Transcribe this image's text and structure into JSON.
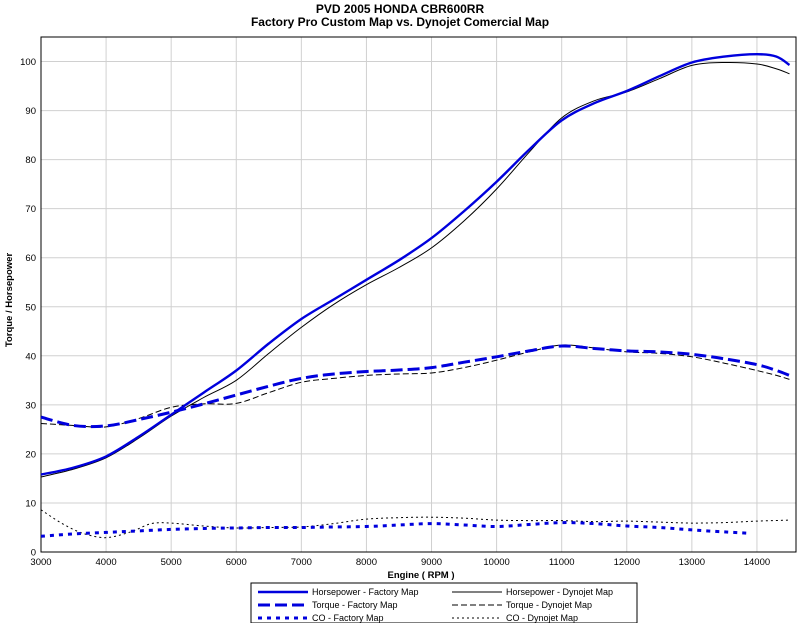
{
  "chart_data": {
    "type": "line",
    "title": "PVD 2005 HONDA CBR600RR",
    "subtitle": "Factory Pro Custom Map vs. Dynojet Comercial Map",
    "xlabel": "Engine ( RPM )",
    "ylabel": "Torque / Horsepower",
    "xlim": [
      3000,
      14600
    ],
    "ylim": [
      0,
      105
    ],
    "xticks": [
      3000,
      4000,
      5000,
      6000,
      7000,
      8000,
      9000,
      10000,
      11000,
      12000,
      13000,
      14000
    ],
    "yticks": [
      0,
      10,
      20,
      30,
      40,
      50,
      60,
      70,
      80,
      90,
      100
    ],
    "grid": true,
    "legend_position": "bottom",
    "series": [
      {
        "name": "Horsepower - Factory Map",
        "color": "#0000dd",
        "style": "solid-thick",
        "x": [
          3000,
          3500,
          4000,
          4500,
          5000,
          5500,
          6000,
          6500,
          7000,
          7500,
          8000,
          8500,
          9000,
          9500,
          10000,
          10500,
          11000,
          11500,
          12000,
          12500,
          13000,
          13500,
          14000,
          14300,
          14500
        ],
        "y": [
          15.8,
          17.2,
          19.5,
          23.5,
          28.0,
          32.5,
          37.0,
          42.5,
          47.5,
          51.5,
          55.5,
          59.5,
          64.0,
          69.5,
          75.5,
          82.0,
          88.0,
          91.5,
          94.0,
          97.0,
          99.8,
          101.0,
          101.5,
          101.0,
          99.3
        ]
      },
      {
        "name": "Horsepower - Dynojet Map",
        "color": "#000000",
        "style": "solid-thin",
        "x": [
          3000,
          3500,
          4000,
          4500,
          5000,
          5500,
          6000,
          6500,
          7000,
          7500,
          8000,
          8500,
          9000,
          9500,
          10000,
          10500,
          11000,
          11500,
          12000,
          12500,
          13000,
          13500,
          14000,
          14300,
          14500
        ],
        "y": [
          15.3,
          16.9,
          19.2,
          23.2,
          27.7,
          31.5,
          35.0,
          40.5,
          45.8,
          50.5,
          54.5,
          58.0,
          62.0,
          67.5,
          74.0,
          81.5,
          88.5,
          92.0,
          93.8,
          96.5,
          99.2,
          99.8,
          99.5,
          98.5,
          97.5
        ]
      },
      {
        "name": "Torque - Factory Map",
        "color": "#0000dd",
        "style": "dash-thick",
        "x": [
          3000,
          3500,
          4000,
          4500,
          5000,
          5500,
          6000,
          6500,
          7000,
          7500,
          8000,
          8500,
          9000,
          9500,
          10000,
          10500,
          11000,
          11500,
          12000,
          12500,
          13000,
          13500,
          14000,
          14300,
          14500
        ],
        "y": [
          27.5,
          25.8,
          25.7,
          27.0,
          28.5,
          30.2,
          32.0,
          33.8,
          35.4,
          36.3,
          36.8,
          37.1,
          37.6,
          38.7,
          39.8,
          41.0,
          42.0,
          41.5,
          41.0,
          40.8,
          40.3,
          39.4,
          38.2,
          37.0,
          36.0
        ]
      },
      {
        "name": "Torque - Dynojet Map",
        "color": "#000000",
        "style": "dash-thin",
        "x": [
          3000,
          3500,
          4000,
          4500,
          5000,
          5500,
          6000,
          6500,
          7000,
          7500,
          8000,
          8500,
          9000,
          9500,
          10000,
          10500,
          11000,
          11500,
          12000,
          12500,
          13000,
          13500,
          14000,
          14300,
          14500
        ],
        "y": [
          26.2,
          25.8,
          25.5,
          27.2,
          29.5,
          30.2,
          30.3,
          32.5,
          34.6,
          35.4,
          36.0,
          36.3,
          36.5,
          37.6,
          39.1,
          40.8,
          42.2,
          41.6,
          40.8,
          40.5,
          39.8,
          38.5,
          37.0,
          36.0,
          35.2
        ]
      },
      {
        "name": "CO - Factory Map",
        "color": "#0000dd",
        "style": "dot-thick",
        "x": [
          3000,
          3500,
          4000,
          4500,
          5000,
          5500,
          6000,
          6500,
          7000,
          7500,
          8000,
          8500,
          9000,
          9500,
          10000,
          10500,
          11000,
          11500,
          12000,
          12500,
          13000,
          13500,
          13900
        ],
        "y": [
          3.2,
          3.7,
          4.0,
          4.3,
          4.6,
          4.8,
          4.9,
          5.0,
          5.0,
          5.1,
          5.2,
          5.5,
          5.8,
          5.5,
          5.2,
          5.6,
          6.0,
          5.8,
          5.3,
          5.0,
          4.5,
          4.1,
          3.8
        ]
      },
      {
        "name": "CO - Dynojet Map",
        "color": "#000000",
        "style": "dot-thin",
        "x": [
          3000,
          3300,
          3600,
          3900,
          4100,
          4400,
          4700,
          5000,
          5500,
          6000,
          6500,
          7000,
          7500,
          8000,
          8500,
          9000,
          9500,
          10000,
          10500,
          11000,
          11500,
          12000,
          12500,
          13000,
          13500,
          14000,
          14500
        ],
        "y": [
          8.6,
          6.0,
          4.0,
          3.0,
          3.1,
          4.2,
          5.8,
          5.9,
          5.3,
          4.9,
          5.0,
          5.1,
          5.8,
          6.7,
          7.0,
          7.1,
          6.9,
          6.5,
          6.4,
          6.4,
          6.2,
          6.3,
          6.1,
          5.9,
          6.0,
          6.3,
          6.5
        ]
      }
    ]
  }
}
